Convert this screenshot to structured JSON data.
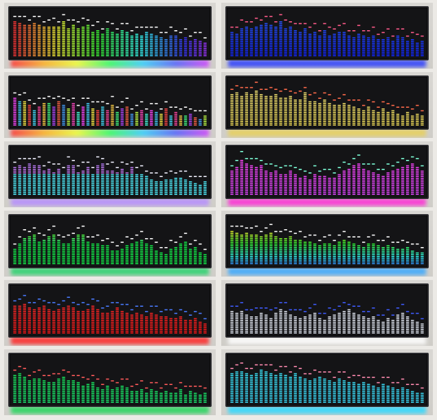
{
  "panels": [
    {
      "id": "p1",
      "palette": "rainbow-h",
      "glow": "rainbow",
      "bars": [
        88,
        84,
        80,
        78,
        82,
        80,
        76,
        74,
        72,
        74,
        86,
        70,
        78,
        68,
        72,
        80,
        60,
        66,
        58,
        70,
        60,
        56,
        64,
        62,
        52,
        58,
        50,
        62,
        56,
        54,
        48,
        44,
        50,
        54,
        42,
        46,
        40,
        44,
        38,
        34
      ]
    },
    {
      "id": "p2",
      "palette": "blue",
      "glow": "#2a3cff",
      "bars": [
        62,
        58,
        70,
        74,
        68,
        72,
        80,
        84,
        78,
        76,
        88,
        70,
        74,
        66,
        62,
        68,
        58,
        60,
        54,
        64,
        52,
        56,
        60,
        62,
        50,
        48,
        56,
        52,
        46,
        54,
        42,
        44,
        48,
        40,
        52,
        46,
        38,
        44,
        36,
        40
      ]
    },
    {
      "id": "p3",
      "palette": "multi",
      "glow": "rainbow",
      "bars": [
        70,
        60,
        62,
        54,
        40,
        48,
        56,
        58,
        46,
        60,
        52,
        44,
        56,
        36,
        48,
        58,
        44,
        40,
        46,
        38,
        50,
        34,
        42,
        46,
        30,
        36,
        40,
        32,
        38,
        34,
        30,
        42,
        28,
        34,
        26,
        24,
        30,
        22,
        18,
        26
      ]
    },
    {
      "id": "p4",
      "palette": "yellow",
      "glow": "#e8d05a",
      "bars": [
        78,
        82,
        76,
        84,
        80,
        86,
        78,
        74,
        72,
        80,
        70,
        68,
        76,
        66,
        64,
        82,
        62,
        60,
        58,
        64,
        56,
        54,
        52,
        58,
        50,
        48,
        44,
        40,
        46,
        38,
        36,
        42,
        34,
        40,
        30,
        28,
        34,
        26,
        30,
        24
      ]
    },
    {
      "id": "p5",
      "palette": "purple-cyan",
      "glow": "#b58cff",
      "bars": [
        70,
        76,
        68,
        80,
        72,
        74,
        62,
        66,
        58,
        64,
        50,
        72,
        76,
        58,
        60,
        70,
        54,
        74,
        78,
        60,
        62,
        56,
        66,
        58,
        70,
        52,
        54,
        46,
        40,
        36,
        34,
        38,
        40,
        42,
        44,
        38,
        36,
        30,
        26,
        34
      ]
    },
    {
      "id": "p6",
      "palette": "magenta",
      "glow": "#ff2bd6",
      "bars": [
        62,
        70,
        86,
        80,
        76,
        68,
        72,
        60,
        58,
        62,
        54,
        52,
        60,
        50,
        44,
        48,
        40,
        52,
        46,
        48,
        42,
        44,
        52,
        60,
        64,
        72,
        78,
        66,
        62,
        58,
        50,
        46,
        56,
        60,
        66,
        70,
        74,
        78,
        70,
        62
      ]
    },
    {
      "id": "p7",
      "palette": "green-yellow",
      "glow": "#27d36c",
      "bars": [
        40,
        52,
        66,
        70,
        76,
        58,
        62,
        70,
        74,
        60,
        52,
        54,
        66,
        72,
        76,
        56,
        50,
        52,
        48,
        46,
        36,
        34,
        40,
        46,
        52,
        56,
        62,
        52,
        46,
        36,
        30,
        28,
        40,
        44,
        50,
        58,
        40,
        44,
        32,
        26
      ]
    },
    {
      "id": "p8",
      "palette": "rainbow-v",
      "glow": "#38a8ff",
      "bars": [
        82,
        78,
        74,
        80,
        76,
        72,
        70,
        74,
        78,
        68,
        64,
        66,
        70,
        62,
        60,
        58,
        56,
        52,
        48,
        54,
        50,
        46,
        56,
        62,
        58,
        52,
        48,
        44,
        50,
        54,
        46,
        42,
        48,
        44,
        40,
        38,
        42,
        36,
        32,
        30
      ]
    },
    {
      "id": "p9",
      "palette": "red",
      "glow": "#ff2424",
      "bars": [
        70,
        68,
        72,
        64,
        60,
        66,
        70,
        62,
        58,
        60,
        66,
        70,
        64,
        58,
        56,
        62,
        68,
        60,
        54,
        52,
        58,
        64,
        56,
        50,
        46,
        52,
        48,
        44,
        50,
        46,
        42,
        44,
        40,
        38,
        44,
        36,
        34,
        40,
        30,
        28
      ]
    },
    {
      "id": "p10",
      "palette": "white",
      "glow": "#ffffff",
      "bars": [
        56,
        52,
        58,
        48,
        44,
        42,
        50,
        46,
        40,
        54,
        60,
        56,
        48,
        44,
        38,
        42,
        46,
        50,
        40,
        36,
        42,
        46,
        52,
        58,
        60,
        54,
        48,
        42,
        38,
        44,
        36,
        30,
        40,
        34,
        46,
        52,
        44,
        36,
        30,
        26
      ]
    },
    {
      "id": "p11",
      "palette": "green",
      "glow": "#21d65a",
      "bars": [
        68,
        72,
        66,
        58,
        62,
        60,
        56,
        52,
        54,
        60,
        64,
        58,
        56,
        50,
        44,
        48,
        52,
        40,
        36,
        42,
        34,
        38,
        44,
        40,
        32,
        30,
        36,
        28,
        34,
        30,
        26,
        32,
        28,
        24,
        36,
        22,
        30,
        26,
        20,
        24
      ]
    },
    {
      "id": "p12",
      "palette": "cyan",
      "glow": "#2bd9ff",
      "bars": [
        72,
        78,
        80,
        74,
        70,
        76,
        82,
        78,
        72,
        68,
        74,
        70,
        66,
        72,
        64,
        62,
        58,
        60,
        66,
        62,
        56,
        52,
        60,
        58,
        54,
        50,
        46,
        52,
        48,
        44,
        40,
        46,
        42,
        38,
        34,
        40,
        36,
        30,
        28,
        26
      ]
    }
  ]
}
